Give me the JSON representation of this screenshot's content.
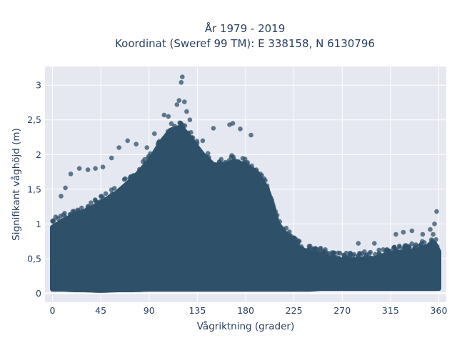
{
  "chart_data": {
    "type": "scatter",
    "title": [
      "År 1979 - 2019",
      "Koordinat (Sweref 99 TM): E 338158, N 6130796"
    ],
    "xlabel": "Vågriktning (grader)",
    "ylabel": "Signifikant våghöjd (m)",
    "xlim": [
      -7,
      367
    ],
    "ylim": [
      -0.13,
      3.27
    ],
    "xticks": [
      0,
      45,
      90,
      135,
      180,
      225,
      270,
      315,
      360
    ],
    "xtick_labels": [
      "0",
      "45",
      "90",
      "135",
      "180",
      "225",
      "270",
      "315",
      "360"
    ],
    "yticks": [
      0,
      0.5,
      1,
      1.5,
      2,
      2.5,
      3
    ],
    "ytick_labels": [
      "0",
      "0,5",
      "1",
      "1,5",
      "2",
      "2,5",
      "3"
    ],
    "grid": true,
    "legend": "none",
    "background_color": "#e5e8f0",
    "marker_color": "#2f5069",
    "envelope": {
      "x": [
        0,
        10,
        20,
        30,
        45,
        60,
        75,
        90,
        100,
        110,
        120,
        130,
        140,
        150,
        160,
        170,
        180,
        190,
        200,
        210,
        220,
        230,
        240,
        250,
        260,
        270,
        280,
        290,
        300,
        310,
        320,
        330,
        340,
        350,
        355,
        360
      ],
      "y_min": [
        0.06,
        0.06,
        0.05,
        0.05,
        0.04,
        0.05,
        0.05,
        0.06,
        0.06,
        0.06,
        0.06,
        0.06,
        0.06,
        0.06,
        0.06,
        0.06,
        0.06,
        0.06,
        0.06,
        0.06,
        0.06,
        0.06,
        0.06,
        0.07,
        0.07,
        0.07,
        0.07,
        0.07,
        0.07,
        0.07,
        0.07,
        0.07,
        0.07,
        0.07,
        0.07,
        0.07
      ],
      "y_max": [
        0.95,
        1.05,
        1.12,
        1.18,
        1.3,
        1.45,
        1.65,
        1.9,
        2.15,
        2.35,
        2.4,
        2.2,
        2.0,
        1.85,
        1.85,
        1.9,
        1.85,
        1.75,
        1.5,
        1.0,
        0.8,
        0.65,
        0.58,
        0.55,
        0.5,
        0.48,
        0.48,
        0.5,
        0.5,
        0.55,
        0.58,
        0.6,
        0.62,
        0.68,
        0.75,
        0.6
      ]
    },
    "outliers": [
      {
        "x": 121,
        "y": 3.12
      },
      {
        "x": 120,
        "y": 3.04
      },
      {
        "x": 118,
        "y": 2.78
      },
      {
        "x": 123,
        "y": 2.76
      },
      {
        "x": 116,
        "y": 2.72
      },
      {
        "x": 104,
        "y": 2.57
      },
      {
        "x": 108,
        "y": 2.55
      },
      {
        "x": 125,
        "y": 2.62
      },
      {
        "x": 168,
        "y": 2.45
      },
      {
        "x": 165,
        "y": 2.43
      },
      {
        "x": 150,
        "y": 2.38
      },
      {
        "x": 175,
        "y": 2.37
      },
      {
        "x": 185,
        "y": 2.28
      },
      {
        "x": 140,
        "y": 2.2
      },
      {
        "x": 128,
        "y": 2.5
      },
      {
        "x": 95,
        "y": 2.3
      },
      {
        "x": 88,
        "y": 2.1
      },
      {
        "x": 70,
        "y": 2.2
      },
      {
        "x": 62,
        "y": 2.1
      },
      {
        "x": 55,
        "y": 1.95
      },
      {
        "x": 47,
        "y": 1.82
      },
      {
        "x": 40,
        "y": 1.8
      },
      {
        "x": 33,
        "y": 1.78
      },
      {
        "x": 25,
        "y": 1.8
      },
      {
        "x": 17,
        "y": 1.72
      },
      {
        "x": 12,
        "y": 1.52
      },
      {
        "x": 8,
        "y": 1.4
      },
      {
        "x": 3,
        "y": 1.1
      },
      {
        "x": 78,
        "y": 2.15
      },
      {
        "x": 190,
        "y": 1.78
      },
      {
        "x": 200,
        "y": 1.55
      },
      {
        "x": 205,
        "y": 1.3
      },
      {
        "x": 215,
        "y": 0.92
      },
      {
        "x": 225,
        "y": 0.8
      },
      {
        "x": 230,
        "y": 0.75
      },
      {
        "x": 240,
        "y": 0.68
      },
      {
        "x": 250,
        "y": 0.65
      },
      {
        "x": 285,
        "y": 0.72
      },
      {
        "x": 300,
        "y": 0.72
      },
      {
        "x": 320,
        "y": 0.85
      },
      {
        "x": 327,
        "y": 0.88
      },
      {
        "x": 335,
        "y": 0.9
      },
      {
        "x": 345,
        "y": 0.85
      },
      {
        "x": 352,
        "y": 0.92
      },
      {
        "x": 356,
        "y": 1.0
      },
      {
        "x": 358,
        "y": 1.18
      }
    ]
  }
}
